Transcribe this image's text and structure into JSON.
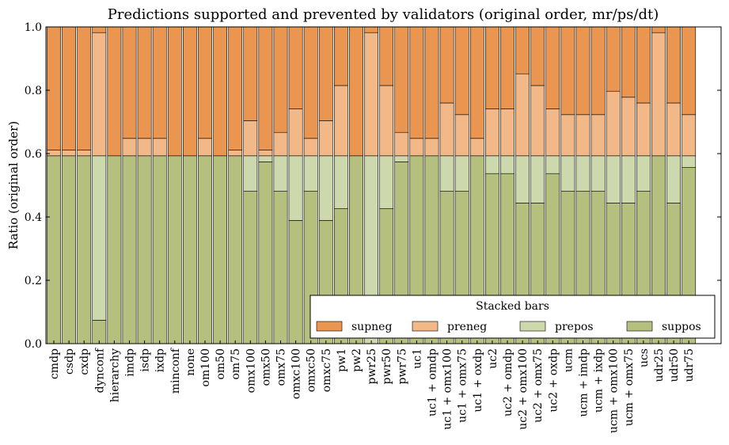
{
  "chart_data": {
    "type": "bar",
    "stacked": true,
    "title": "Predictions supported and prevented by validators (original order, mr/ps/dt)",
    "xlabel": "",
    "ylabel": "Ratio (original order)",
    "ylim": [
      0,
      1.0
    ],
    "yticks": [
      "0.0",
      "0.2",
      "0.4",
      "0.6",
      "0.8",
      "1.0"
    ],
    "grid": false,
    "legend": {
      "title": "Stacked bars",
      "placement": "lower-right",
      "entries": [
        "supneg",
        "preneg",
        "prepos",
        "suppos"
      ]
    },
    "categories": [
      "cmdp",
      "csdp",
      "cxdp",
      "dynconf",
      "hierarchy",
      "imdp",
      "isdp",
      "ixdp",
      "minconf",
      "none",
      "om100",
      "om50",
      "om75",
      "omx100",
      "omx50",
      "omx75",
      "omxc100",
      "omxc50",
      "omxc75",
      "pw1",
      "pw2",
      "pwr25",
      "pwr50",
      "pwr75",
      "uc1",
      "uc1 + omdp",
      "uc1 + omx100",
      "uc1 + omx75",
      "uc1 + oxdp",
      "uc2",
      "uc2 + omdp",
      "uc2 + omx100",
      "uc2 + omx75",
      "uc2 + oxdp",
      "ucm",
      "ucm + imdp",
      "ucm + ixdp",
      "ucm + omx100",
      "ucm + omx75",
      "ucs",
      "udr25",
      "udr50",
      "udr75"
    ],
    "series": [
      {
        "name": "suppos",
        "color": "#b5c07f",
        "values": [
          0.593,
          0.593,
          0.593,
          0.074,
          0.593,
          0.593,
          0.593,
          0.593,
          0.593,
          0.593,
          0.593,
          0.593,
          0.593,
          0.481,
          0.574,
          0.481,
          0.389,
          0.481,
          0.389,
          0.426,
          0.593,
          0.0,
          0.426,
          0.574,
          0.593,
          0.593,
          0.481,
          0.481,
          0.593,
          0.537,
          0.537,
          0.444,
          0.444,
          0.537,
          0.481,
          0.481,
          0.481,
          0.444,
          0.444,
          0.481,
          0.593,
          0.444,
          0.556
        ]
      },
      {
        "name": "prepos",
        "color": "#cdd8ac",
        "values": [
          0.0,
          0.0,
          0.0,
          0.519,
          0.0,
          0.0,
          0.0,
          0.0,
          0.0,
          0.0,
          0.0,
          0.0,
          0.0,
          0.112,
          0.019,
          0.112,
          0.204,
          0.112,
          0.204,
          0.167,
          0.0,
          0.593,
          0.167,
          0.019,
          0.0,
          0.0,
          0.112,
          0.112,
          0.0,
          0.056,
          0.056,
          0.149,
          0.149,
          0.056,
          0.112,
          0.112,
          0.112,
          0.149,
          0.149,
          0.112,
          0.0,
          0.149,
          0.037
        ]
      },
      {
        "name": "preneg",
        "color": "#f2b887",
        "values": [
          0.018,
          0.018,
          0.018,
          0.389,
          0.0,
          0.055,
          0.055,
          0.055,
          0.0,
          0.0,
          0.055,
          0.0,
          0.018,
          0.111,
          0.018,
          0.074,
          0.148,
          0.055,
          0.111,
          0.222,
          0.0,
          0.389,
          0.222,
          0.074,
          0.055,
          0.055,
          0.167,
          0.13,
          0.055,
          0.148,
          0.148,
          0.259,
          0.222,
          0.148,
          0.13,
          0.13,
          0.13,
          0.204,
          0.185,
          0.167,
          0.389,
          0.167,
          0.13
        ]
      },
      {
        "name": "supneg",
        "color": "#ea9651",
        "values": [
          0.389,
          0.389,
          0.389,
          0.018,
          0.407,
          0.352,
          0.352,
          0.352,
          0.407,
          0.407,
          0.352,
          0.407,
          0.389,
          0.296,
          0.389,
          0.333,
          0.259,
          0.352,
          0.296,
          0.185,
          0.407,
          0.018,
          0.185,
          0.333,
          0.352,
          0.352,
          0.24,
          0.277,
          0.352,
          0.259,
          0.259,
          0.148,
          0.185,
          0.259,
          0.277,
          0.277,
          0.277,
          0.203,
          0.222,
          0.24,
          0.018,
          0.24,
          0.277
        ]
      }
    ]
  }
}
